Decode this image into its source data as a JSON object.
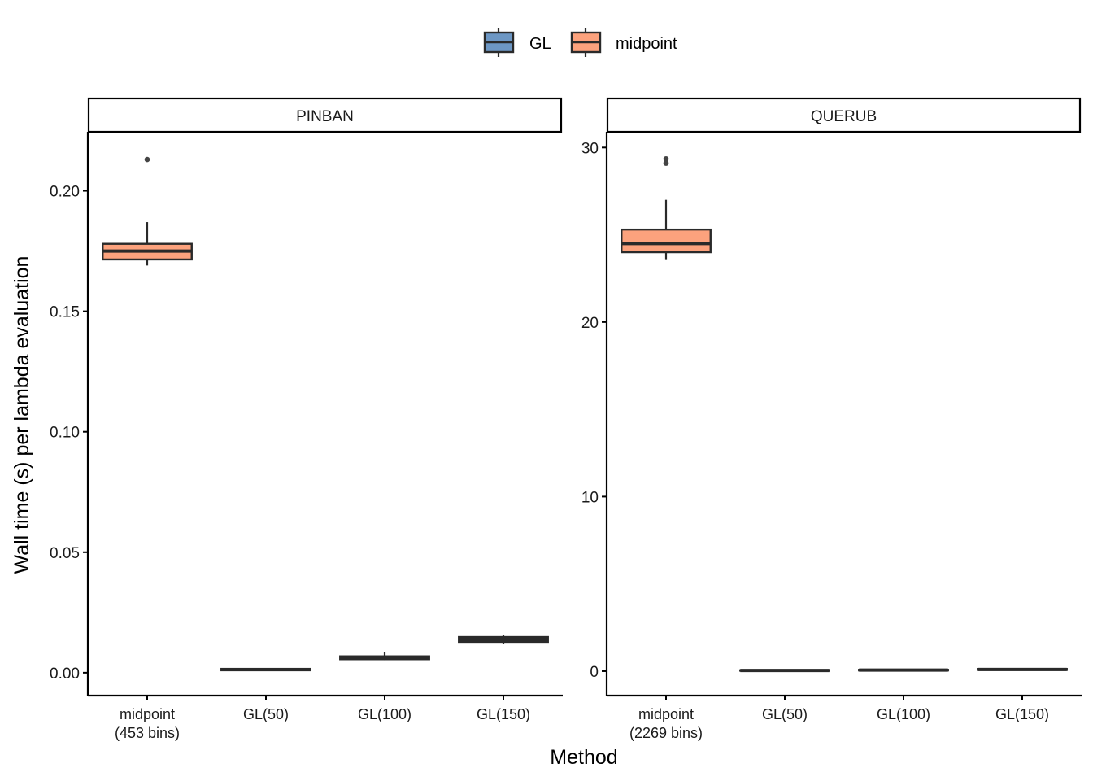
{
  "chart_data": {
    "type": "boxplot",
    "xlabel": "Method",
    "ylabel": "Wall time (s) per lambda evaluation",
    "legend": {
      "position": "top",
      "entries": [
        {
          "label": "GL",
          "color": "#6D97C4"
        },
        {
          "label": "midpoint",
          "color": "#FCA27D"
        }
      ]
    },
    "panels": [
      {
        "strip": "PINBAN",
        "ylim": [
          -0.0095,
          0.2245
        ],
        "yticks": [
          0.0,
          0.05,
          0.1,
          0.15,
          0.2
        ],
        "ytick_labels": [
          "0.00",
          "0.05",
          "0.10",
          "0.15",
          "0.20"
        ],
        "categories": [
          "midpoint\n(453 bins)",
          "GL(50)",
          "GL(100)",
          "GL(150)"
        ],
        "category_lines": [
          [
            "midpoint",
            "(453 bins)"
          ],
          [
            "GL(50)"
          ],
          [
            "GL(100)"
          ],
          [
            "GL(150)"
          ]
        ],
        "boxes": [
          {
            "group": "midpoint",
            "min": 0.169,
            "q1": 0.1715,
            "median": 0.175,
            "q3": 0.178,
            "max": 0.187,
            "outliers": [
              0.213
            ]
          },
          {
            "group": "GL",
            "min": 0.0008,
            "q1": 0.001,
            "median": 0.0013,
            "q3": 0.0016,
            "max": 0.0018,
            "outliers": []
          },
          {
            "group": "GL",
            "min": 0.0052,
            "q1": 0.0056,
            "median": 0.0062,
            "q3": 0.0068,
            "max": 0.0085,
            "outliers": []
          },
          {
            "group": "GL",
            "min": 0.012,
            "q1": 0.0128,
            "median": 0.0138,
            "q3": 0.0148,
            "max": 0.0158,
            "outliers": []
          }
        ]
      },
      {
        "strip": "QUERUB",
        "ylim": [
          -1.4,
          30.9
        ],
        "yticks": [
          0,
          10,
          20,
          30
        ],
        "ytick_labels": [
          "0",
          "10",
          "20",
          "30"
        ],
        "categories": [
          "midpoint\n(2269 bins)",
          "GL(50)",
          "GL(100)",
          "GL(150)"
        ],
        "category_lines": [
          [
            "midpoint",
            "(2269 bins)"
          ],
          [
            "GL(50)"
          ],
          [
            "GL(100)"
          ],
          [
            "GL(150)"
          ]
        ],
        "boxes": [
          {
            "group": "midpoint",
            "min": 23.6,
            "q1": 24.0,
            "median": 24.5,
            "q3": 25.3,
            "max": 27.0,
            "outliers": [
              29.1,
              29.35
            ]
          },
          {
            "group": "GL",
            "min": 0.02,
            "q1": 0.03,
            "median": 0.04,
            "q3": 0.05,
            "max": 0.06,
            "outliers": []
          },
          {
            "group": "GL",
            "min": 0.02,
            "q1": 0.04,
            "median": 0.06,
            "q3": 0.08,
            "max": 0.12,
            "outliers": []
          },
          {
            "group": "GL",
            "min": 0.04,
            "q1": 0.07,
            "median": 0.1,
            "q3": 0.13,
            "max": 0.18,
            "outliers": []
          }
        ]
      }
    ]
  }
}
